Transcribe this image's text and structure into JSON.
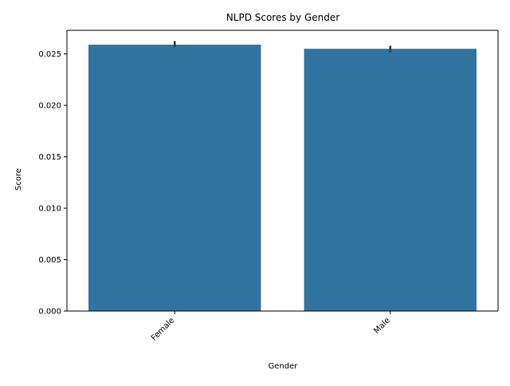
{
  "chart_data": {
    "type": "bar",
    "title": "NLPD Scores by Gender",
    "xlabel": "Gender",
    "ylabel": "Score",
    "categories": [
      "Female",
      "Male"
    ],
    "values": [
      0.0259,
      0.0255
    ],
    "error_bars": [
      {
        "low": 0.02565,
        "high": 0.02625
      },
      {
        "low": 0.02515,
        "high": 0.0258
      }
    ],
    "ylim": [
      0,
      0.0273
    ],
    "yticks": [
      0.0,
      0.005,
      0.01,
      0.015,
      0.02,
      0.025
    ],
    "ytick_labels": [
      "0.000",
      "0.005",
      "0.010",
      "0.015",
      "0.020",
      "0.025"
    ],
    "bar_color": "#3274a1",
    "errorbar_color": "#3d3d3d",
    "grid": false,
    "legend": "none",
    "xtick_rotation": "45° rotated, right-aligned"
  }
}
